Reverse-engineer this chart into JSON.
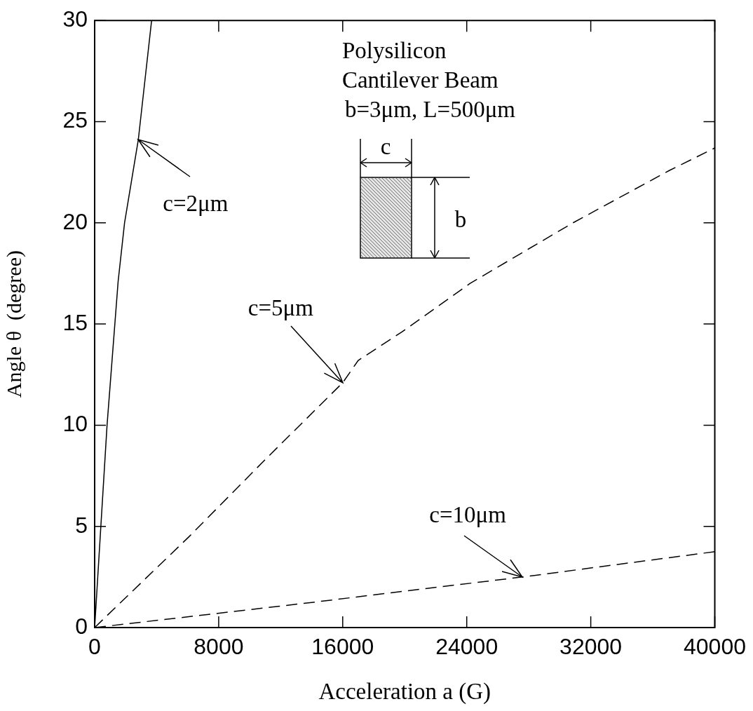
{
  "chart_data": {
    "type": "line",
    "xlabel": "Acceleration a (G)",
    "ylabel": "Angle θ  (degree)",
    "xlim": [
      0,
      40000
    ],
    "ylim": [
      0,
      30
    ],
    "xticks": [
      0,
      8000,
      16000,
      24000,
      32000,
      40000
    ],
    "yticks": [
      0,
      5,
      10,
      15,
      20,
      25,
      30
    ],
    "grid": false,
    "legend": false,
    "marker": "none",
    "series": [
      {
        "color": "#000000",
        "line_style": "solid",
        "x": [
          0,
          800,
          1514,
          1929,
          2815,
          3674
        ],
        "values": [
          0,
          10,
          17.1,
          20,
          24.1,
          30
        ]
      },
      {
        "color": "#000000",
        "line_style": "dashed",
        "x": [
          0,
          6100,
          11000,
          16000,
          17000,
          19800,
          24200,
          30850,
          37100,
          40000
        ],
        "values": [
          0,
          4.5,
          8.3,
          12.1,
          13.2,
          14.6,
          17,
          20,
          22.6,
          23.7
        ]
      },
      {
        "color": "#000000",
        "line_style": "dashed",
        "x": [
          0,
          14100,
          20000,
          27600,
          40000
        ],
        "values": [
          0,
          1.25,
          1.8,
          2.5,
          3.75
        ]
      }
    ],
    "annotations": [
      "Polysilicon",
      "Cantilever Beam",
      "b=3μm, L=500μm",
      "c",
      "b",
      {
        "text": "c=2μm",
        "x": 2815,
        "y": 24.1
      },
      {
        "text": "c=5μm",
        "x": 16000,
        "y": 12.1
      },
      {
        "text": "c=10μm",
        "x": 27600,
        "y": 2.5
      }
    ]
  }
}
